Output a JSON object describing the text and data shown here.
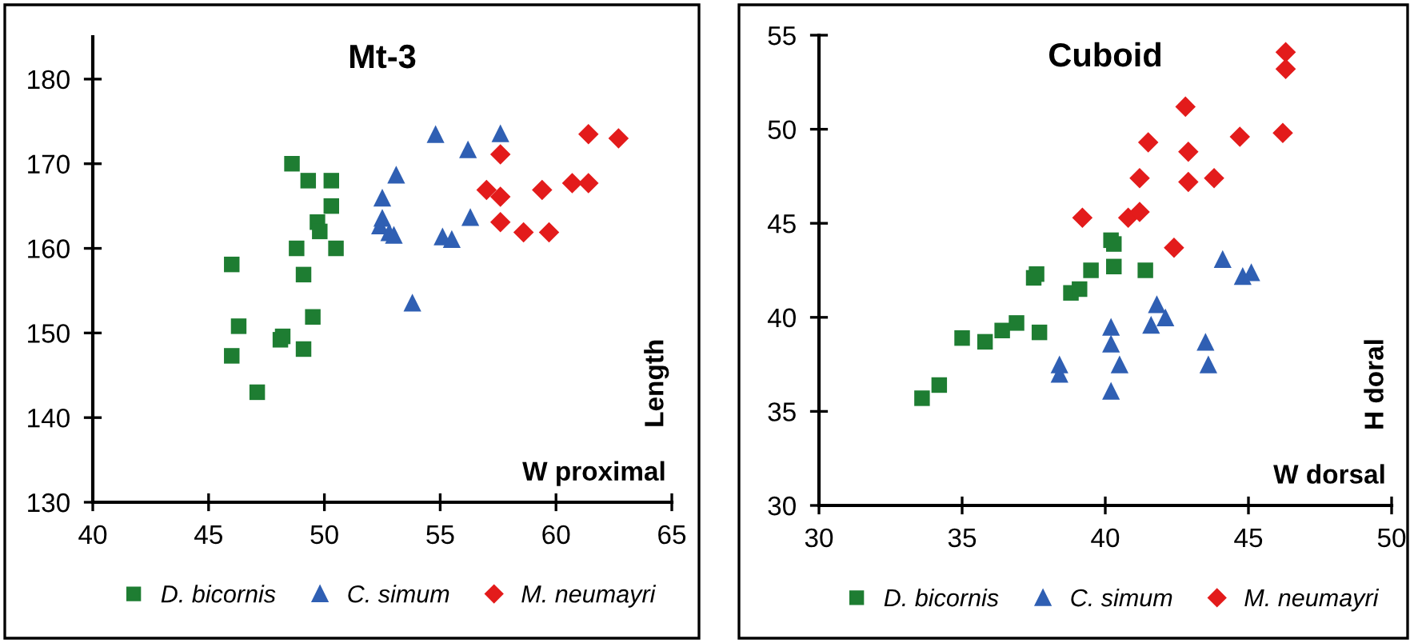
{
  "chart_data": [
    {
      "type": "scatter",
      "title": "Mt-3",
      "xlabel": "W proximal",
      "ylabel": "Length",
      "xlim": [
        40,
        65
      ],
      "xticks": [
        40,
        45,
        50,
        55,
        60,
        65
      ],
      "ylim": [
        130,
        185
      ],
      "yticks": [
        130,
        140,
        150,
        160,
        170,
        180
      ],
      "grid": false,
      "legend": "bottom",
      "series": [
        {
          "name": "D. bicornis",
          "color": "#1e7d32",
          "marker": "square",
          "x": [
            48.6,
            49.3,
            50.3,
            50.3,
            49.7,
            49.8,
            48.8,
            50.5,
            46.0,
            49.1,
            49.5,
            46.3,
            48.1,
            48.2,
            49.1,
            46.0,
            47.1
          ],
          "values": [
            170.0,
            168.0,
            168.0,
            165.0,
            163.1,
            162.0,
            160.0,
            160.0,
            158.1,
            156.9,
            151.9,
            150.8,
            149.2,
            149.6,
            148.1,
            147.3,
            143.0
          ]
        },
        {
          "name": "C. simum",
          "color": "#2f5fb3",
          "marker": "triangle",
          "x": [
            54.8,
            57.6,
            56.2,
            53.1,
            52.5,
            52.5,
            52.4,
            52.8,
            53.0,
            56.3,
            55.1,
            55.5,
            53.8
          ],
          "values": [
            173.5,
            173.6,
            171.7,
            168.7,
            166.0,
            163.6,
            162.7,
            161.9,
            161.6,
            163.7,
            161.4,
            161.1,
            153.6
          ]
        },
        {
          "name": "M. neumayri",
          "color": "#e31b1b",
          "marker": "diamond",
          "x": [
            61.4,
            62.7,
            57.6,
            57.0,
            57.6,
            59.4,
            60.7,
            61.4,
            57.6,
            58.6,
            59.7
          ],
          "values": [
            173.5,
            173.0,
            171.1,
            166.9,
            166.1,
            166.9,
            167.7,
            167.7,
            163.1,
            161.9,
            161.9
          ]
        }
      ]
    },
    {
      "type": "scatter",
      "title": "Cuboid",
      "xlabel": "W dorsal",
      "ylabel": "H doral",
      "xlim": [
        30,
        50
      ],
      "xticks": [
        30,
        35,
        40,
        45,
        50
      ],
      "ylim": [
        30,
        55
      ],
      "yticks": [
        30,
        35,
        40,
        45,
        50,
        55
      ],
      "grid": false,
      "legend": "bottom",
      "series": [
        {
          "name": "D. bicornis",
          "color": "#1e7d32",
          "marker": "square",
          "x": [
            33.6,
            34.2,
            35.0,
            35.8,
            36.4,
            36.9,
            37.7,
            37.5,
            37.6,
            38.8,
            39.1,
            39.5,
            40.2,
            40.3,
            40.3,
            41.4
          ],
          "values": [
            35.7,
            36.4,
            38.9,
            38.7,
            39.3,
            39.7,
            39.2,
            42.1,
            42.3,
            41.3,
            41.5,
            42.5,
            44.1,
            43.9,
            42.7,
            42.5
          ]
        },
        {
          "name": "C. simum",
          "color": "#2f5fb3",
          "marker": "triangle",
          "x": [
            38.4,
            38.4,
            40.2,
            40.2,
            40.5,
            40.2,
            41.6,
            41.8,
            42.1,
            43.5,
            43.6,
            44.1,
            44.8,
            45.1
          ],
          "values": [
            37.5,
            37.0,
            39.5,
            38.6,
            37.5,
            36.1,
            39.6,
            40.7,
            40.0,
            38.7,
            37.5,
            43.1,
            42.2,
            42.4
          ]
        },
        {
          "name": "M. neumayri",
          "color": "#e31b1b",
          "marker": "diamond",
          "x": [
            46.3,
            46.3,
            42.8,
            46.2,
            44.7,
            41.5,
            42.9,
            41.2,
            42.9,
            43.8,
            39.2,
            40.8,
            41.2,
            42.4
          ],
          "values": [
            54.1,
            53.2,
            51.2,
            49.8,
            49.6,
            49.3,
            48.8,
            47.4,
            47.2,
            47.4,
            45.3,
            45.3,
            45.6,
            43.7
          ]
        }
      ]
    }
  ]
}
